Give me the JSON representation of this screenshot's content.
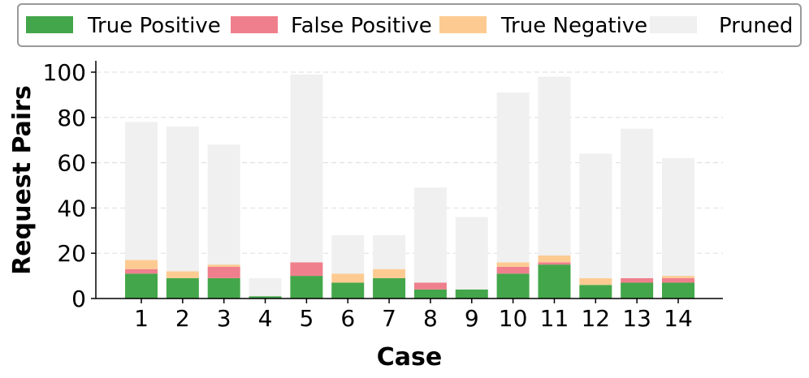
{
  "chart_data": {
    "type": "bar",
    "stacked": true,
    "categories": [
      "1",
      "2",
      "3",
      "4",
      "5",
      "6",
      "7",
      "8",
      "9",
      "10",
      "11",
      "12",
      "13",
      "14"
    ],
    "series": [
      {
        "name": "True Positive",
        "color": "#44a64a",
        "values": [
          11,
          9,
          9,
          1,
          10,
          7,
          9,
          4,
          4,
          11,
          15,
          6,
          7,
          7
        ]
      },
      {
        "name": "False Positive",
        "color": "#ef7f8c",
        "values": [
          2,
          0,
          5,
          0,
          6,
          0,
          0,
          3,
          0,
          3,
          1,
          0,
          2,
          2
        ]
      },
      {
        "name": "True Negative",
        "color": "#fdcb92",
        "values": [
          4,
          3,
          1,
          0,
          0,
          4,
          4,
          0,
          0,
          2,
          3,
          3,
          0,
          1
        ]
      },
      {
        "name": "Pruned",
        "color": "#f0f0f0",
        "values": [
          61,
          64,
          53,
          8,
          83,
          17,
          15,
          42,
          32,
          75,
          79,
          55,
          66,
          52
        ]
      }
    ],
    "xlabel": "Case",
    "ylabel": "Request Pairs",
    "ylim": [
      0,
      105
    ],
    "yticks": [
      0,
      20,
      40,
      60,
      80,
      100
    ],
    "grid": "y-dashed",
    "legend_position": "top"
  }
}
